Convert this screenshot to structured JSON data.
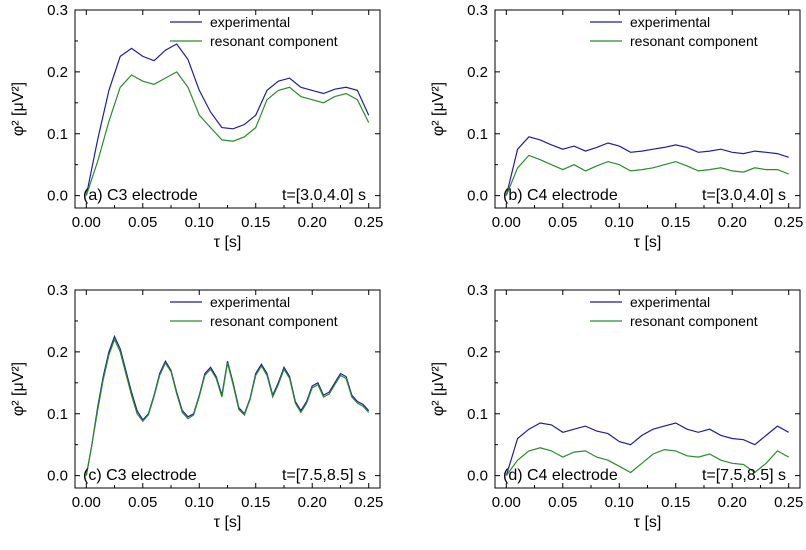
{
  "chart_data": [
    {
      "type": "line",
      "panel_label": "(a) C3 electrode",
      "time_window": "t=[3.0,4.0] s",
      "xlabel": "τ [s]",
      "ylabel": "φ² [μV²]",
      "xlim": [
        -0.01,
        0.26
      ],
      "ylim": [
        -0.02,
        0.3
      ],
      "xticks": [
        0.0,
        0.05,
        0.1,
        0.15,
        0.2,
        0.25
      ],
      "xtick_labels": [
        "0.00",
        "0.05",
        "0.10",
        "0.15",
        "0.20",
        "0.25"
      ],
      "yticks": [
        0.0,
        0.1,
        0.2,
        0.3
      ],
      "ytick_labels": [
        "0.0",
        "0.1",
        "0.2",
        "0.3"
      ],
      "legend_position": "top-right",
      "x": [
        0,
        0.01,
        0.02,
        0.03,
        0.04,
        0.05,
        0.06,
        0.07,
        0.08,
        0.09,
        0.1,
        0.11,
        0.12,
        0.13,
        0.14,
        0.15,
        0.16,
        0.17,
        0.18,
        0.19,
        0.2,
        0.21,
        0.22,
        0.23,
        0.24,
        0.25
      ],
      "series": [
        {
          "name": "experimental",
          "color": "#1f1f9e",
          "values": [
            0.0,
            0.09,
            0.17,
            0.225,
            0.238,
            0.225,
            0.218,
            0.235,
            0.245,
            0.22,
            0.17,
            0.135,
            0.11,
            0.108,
            0.115,
            0.13,
            0.17,
            0.185,
            0.19,
            0.175,
            0.17,
            0.165,
            0.172,
            0.175,
            0.17,
            0.13
          ]
        },
        {
          "name": "resonant component",
          "color": "#2a8c2a",
          "values": [
            0.0,
            0.055,
            0.12,
            0.175,
            0.195,
            0.185,
            0.18,
            0.19,
            0.2,
            0.175,
            0.13,
            0.11,
            0.09,
            0.088,
            0.095,
            0.11,
            0.155,
            0.17,
            0.175,
            0.16,
            0.155,
            0.15,
            0.16,
            0.165,
            0.155,
            0.118
          ]
        }
      ]
    },
    {
      "type": "line",
      "panel_label": "(b) C4 electrode",
      "time_window": "t=[3.0,4.0] s",
      "xlabel": "τ [s]",
      "ylabel": "φ² [μV²]",
      "xlim": [
        -0.01,
        0.26
      ],
      "ylim": [
        -0.02,
        0.3
      ],
      "xticks": [
        0.0,
        0.05,
        0.1,
        0.15,
        0.2,
        0.25
      ],
      "xtick_labels": [
        "0.00",
        "0.05",
        "0.10",
        "0.15",
        "0.20",
        "0.25"
      ],
      "yticks": [
        0.0,
        0.1,
        0.2,
        0.3
      ],
      "ytick_labels": [
        "0.0",
        "0.1",
        "0.2",
        "0.3"
      ],
      "legend_position": "top-right",
      "x": [
        0,
        0.01,
        0.02,
        0.03,
        0.04,
        0.05,
        0.06,
        0.07,
        0.08,
        0.09,
        0.1,
        0.11,
        0.12,
        0.13,
        0.14,
        0.15,
        0.16,
        0.17,
        0.18,
        0.19,
        0.2,
        0.21,
        0.22,
        0.23,
        0.24,
        0.25
      ],
      "series": [
        {
          "name": "experimental",
          "color": "#1f1f9e",
          "values": [
            0.0,
            0.075,
            0.095,
            0.09,
            0.082,
            0.075,
            0.08,
            0.072,
            0.078,
            0.085,
            0.08,
            0.07,
            0.072,
            0.075,
            0.078,
            0.082,
            0.078,
            0.07,
            0.072,
            0.075,
            0.07,
            0.068,
            0.072,
            0.07,
            0.068,
            0.062
          ]
        },
        {
          "name": "resonant component",
          "color": "#2a8c2a",
          "values": [
            0.0,
            0.045,
            0.065,
            0.058,
            0.05,
            0.042,
            0.05,
            0.04,
            0.048,
            0.055,
            0.05,
            0.04,
            0.042,
            0.045,
            0.05,
            0.055,
            0.048,
            0.04,
            0.042,
            0.045,
            0.04,
            0.038,
            0.045,
            0.042,
            0.042,
            0.035
          ]
        }
      ]
    },
    {
      "type": "line",
      "panel_label": "(c) C3 electrode",
      "time_window": "t=[7.5,8.5] s",
      "xlabel": "τ [s]",
      "ylabel": "φ² [μV²]",
      "xlim": [
        -0.01,
        0.26
      ],
      "ylim": [
        -0.02,
        0.3
      ],
      "xticks": [
        0.0,
        0.05,
        0.1,
        0.15,
        0.2,
        0.25
      ],
      "xtick_labels": [
        "0.00",
        "0.05",
        "0.10",
        "0.15",
        "0.20",
        "0.25"
      ],
      "yticks": [
        0.0,
        0.1,
        0.2,
        0.3
      ],
      "ytick_labels": [
        "0.0",
        "0.1",
        "0.2",
        "0.3"
      ],
      "legend_position": "top-right",
      "x": [
        0,
        0.005,
        0.01,
        0.015,
        0.02,
        0.025,
        0.03,
        0.035,
        0.04,
        0.045,
        0.05,
        0.055,
        0.06,
        0.065,
        0.07,
        0.075,
        0.08,
        0.085,
        0.09,
        0.095,
        0.1,
        0.105,
        0.11,
        0.115,
        0.12,
        0.125,
        0.13,
        0.135,
        0.14,
        0.145,
        0.15,
        0.155,
        0.16,
        0.165,
        0.17,
        0.175,
        0.18,
        0.185,
        0.19,
        0.195,
        0.2,
        0.205,
        0.21,
        0.215,
        0.22,
        0.225,
        0.23,
        0.235,
        0.24,
        0.245,
        0.25
      ],
      "series": [
        {
          "name": "experimental",
          "color": "#1f1f9e",
          "values": [
            0.0,
            0.05,
            0.11,
            0.16,
            0.2,
            0.225,
            0.205,
            0.17,
            0.135,
            0.105,
            0.09,
            0.1,
            0.13,
            0.165,
            0.185,
            0.17,
            0.135,
            0.105,
            0.095,
            0.1,
            0.13,
            0.165,
            0.175,
            0.16,
            0.13,
            0.185,
            0.15,
            0.11,
            0.1,
            0.125,
            0.165,
            0.18,
            0.165,
            0.13,
            0.15,
            0.175,
            0.16,
            0.12,
            0.105,
            0.12,
            0.145,
            0.15,
            0.13,
            0.135,
            0.15,
            0.165,
            0.16,
            0.13,
            0.12,
            0.115,
            0.105
          ]
        },
        {
          "name": "resonant component",
          "color": "#2a8c2a",
          "values": [
            0.0,
            0.05,
            0.105,
            0.155,
            0.195,
            0.22,
            0.2,
            0.165,
            0.13,
            0.1,
            0.088,
            0.098,
            0.128,
            0.162,
            0.182,
            0.168,
            0.132,
            0.102,
            0.092,
            0.098,
            0.128,
            0.162,
            0.172,
            0.157,
            0.127,
            0.182,
            0.147,
            0.107,
            0.098,
            0.123,
            0.162,
            0.177,
            0.162,
            0.127,
            0.147,
            0.172,
            0.157,
            0.117,
            0.102,
            0.117,
            0.142,
            0.147,
            0.127,
            0.132,
            0.147,
            0.162,
            0.157,
            0.127,
            0.117,
            0.112,
            0.102
          ]
        }
      ]
    },
    {
      "type": "line",
      "panel_label": "(d) C4 electrode",
      "time_window": "t=[7.5,8.5] s",
      "xlabel": "τ [s]",
      "ylabel": "φ² [μV²]",
      "xlim": [
        -0.01,
        0.26
      ],
      "ylim": [
        -0.02,
        0.3
      ],
      "xticks": [
        0.0,
        0.05,
        0.1,
        0.15,
        0.2,
        0.25
      ],
      "xtick_labels": [
        "0.00",
        "0.05",
        "0.10",
        "0.15",
        "0.20",
        "0.25"
      ],
      "yticks": [
        0.0,
        0.1,
        0.2,
        0.3
      ],
      "ytick_labels": [
        "0.0",
        "0.1",
        "0.2",
        "0.3"
      ],
      "legend_position": "top-right",
      "x": [
        0,
        0.01,
        0.02,
        0.03,
        0.04,
        0.05,
        0.06,
        0.07,
        0.08,
        0.09,
        0.1,
        0.11,
        0.12,
        0.13,
        0.14,
        0.15,
        0.16,
        0.17,
        0.18,
        0.19,
        0.2,
        0.21,
        0.22,
        0.23,
        0.24,
        0.25
      ],
      "series": [
        {
          "name": "experimental",
          "color": "#1f1f9e",
          "values": [
            0.0,
            0.06,
            0.075,
            0.085,
            0.082,
            0.07,
            0.075,
            0.08,
            0.072,
            0.068,
            0.055,
            0.05,
            0.065,
            0.075,
            0.08,
            0.085,
            0.075,
            0.07,
            0.075,
            0.065,
            0.06,
            0.058,
            0.05,
            0.065,
            0.08,
            0.07
          ]
        },
        {
          "name": "resonant component",
          "color": "#2a8c2a",
          "values": [
            0.0,
            0.025,
            0.04,
            0.045,
            0.04,
            0.03,
            0.038,
            0.04,
            0.03,
            0.025,
            0.015,
            0.005,
            0.02,
            0.035,
            0.042,
            0.04,
            0.032,
            0.03,
            0.035,
            0.025,
            0.02,
            0.018,
            0.005,
            0.02,
            0.04,
            0.03
          ]
        }
      ]
    }
  ]
}
